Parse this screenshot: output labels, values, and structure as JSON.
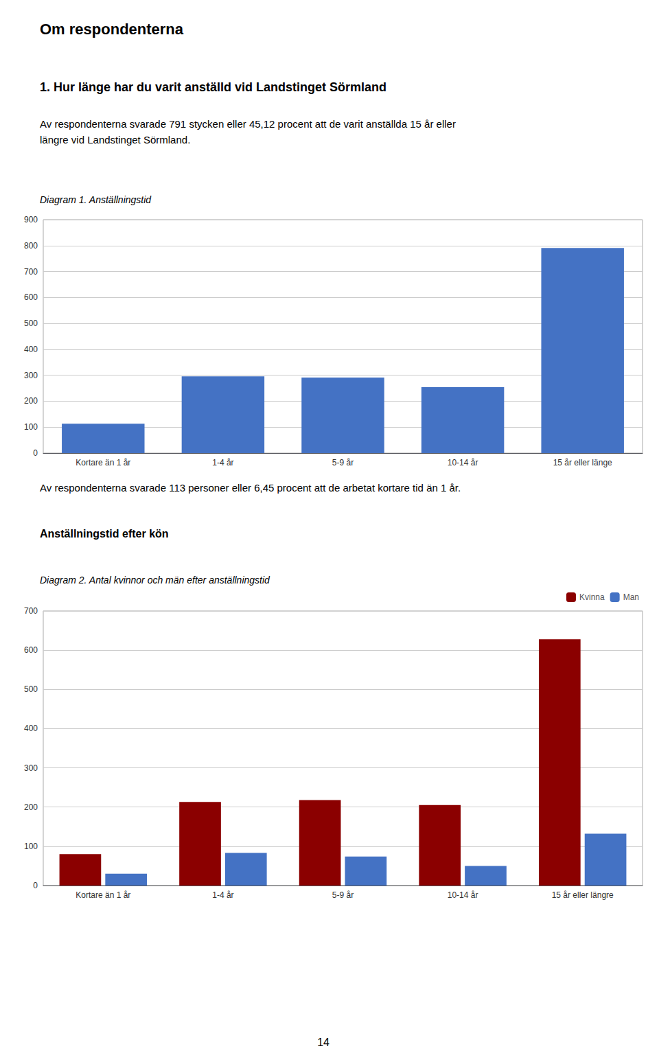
{
  "title": "Om respondenterna",
  "annotations": [
    "14"
  ],
  "chart_data": [
    {
      "type": "bar",
      "annotations": [
        "1. Hur länge har du varit anställd vid Landstinget Sörmland",
        "Av respondenterna svarade 791 stycken eller 45,12 procent att de varit anställda 15 år eller",
        "längre vid Landstinget Sörmland."
      ],
      "title": "Diagram 1. Anställningstid",
      "categories": [
        "Kortare än 1 år",
        "1-4 år",
        "5-9 år",
        "10-14 år",
        "15 år eller länge"
      ],
      "values": [
        113,
        296,
        291,
        254,
        791
      ],
      "color": "#4472C4",
      "ylim": [
        0,
        900
      ],
      "yticks": [
        0,
        100,
        200,
        300,
        400,
        500,
        600,
        700,
        800,
        900
      ],
      "grid": true
    },
    {
      "type": "bar",
      "annotations": [
        "Av respondenterna svarade 113 personer eller 6,45 procent att de arbetat kortare tid än 1 år.",
        "Anställningstid efter kön"
      ],
      "title": "Diagram 2. Antal kvinnor och män efter anställningstid",
      "categories": [
        "Kortare än 1 år",
        "1-4 år",
        "5-9 år",
        "10-14 år",
        "15 år eller längre"
      ],
      "series": [
        {
          "name": "Kvinna",
          "color": "#8B0000",
          "values": [
            80,
            213,
            218,
            205,
            628
          ]
        },
        {
          "name": "Man",
          "color": "#4472C4",
          "values": [
            30,
            83,
            74,
            50,
            132
          ]
        }
      ],
      "ylim": [
        0,
        700
      ],
      "yticks": [
        0,
        100,
        200,
        300,
        400,
        500,
        600,
        700
      ],
      "grid": true,
      "legend": "upper right"
    }
  ]
}
